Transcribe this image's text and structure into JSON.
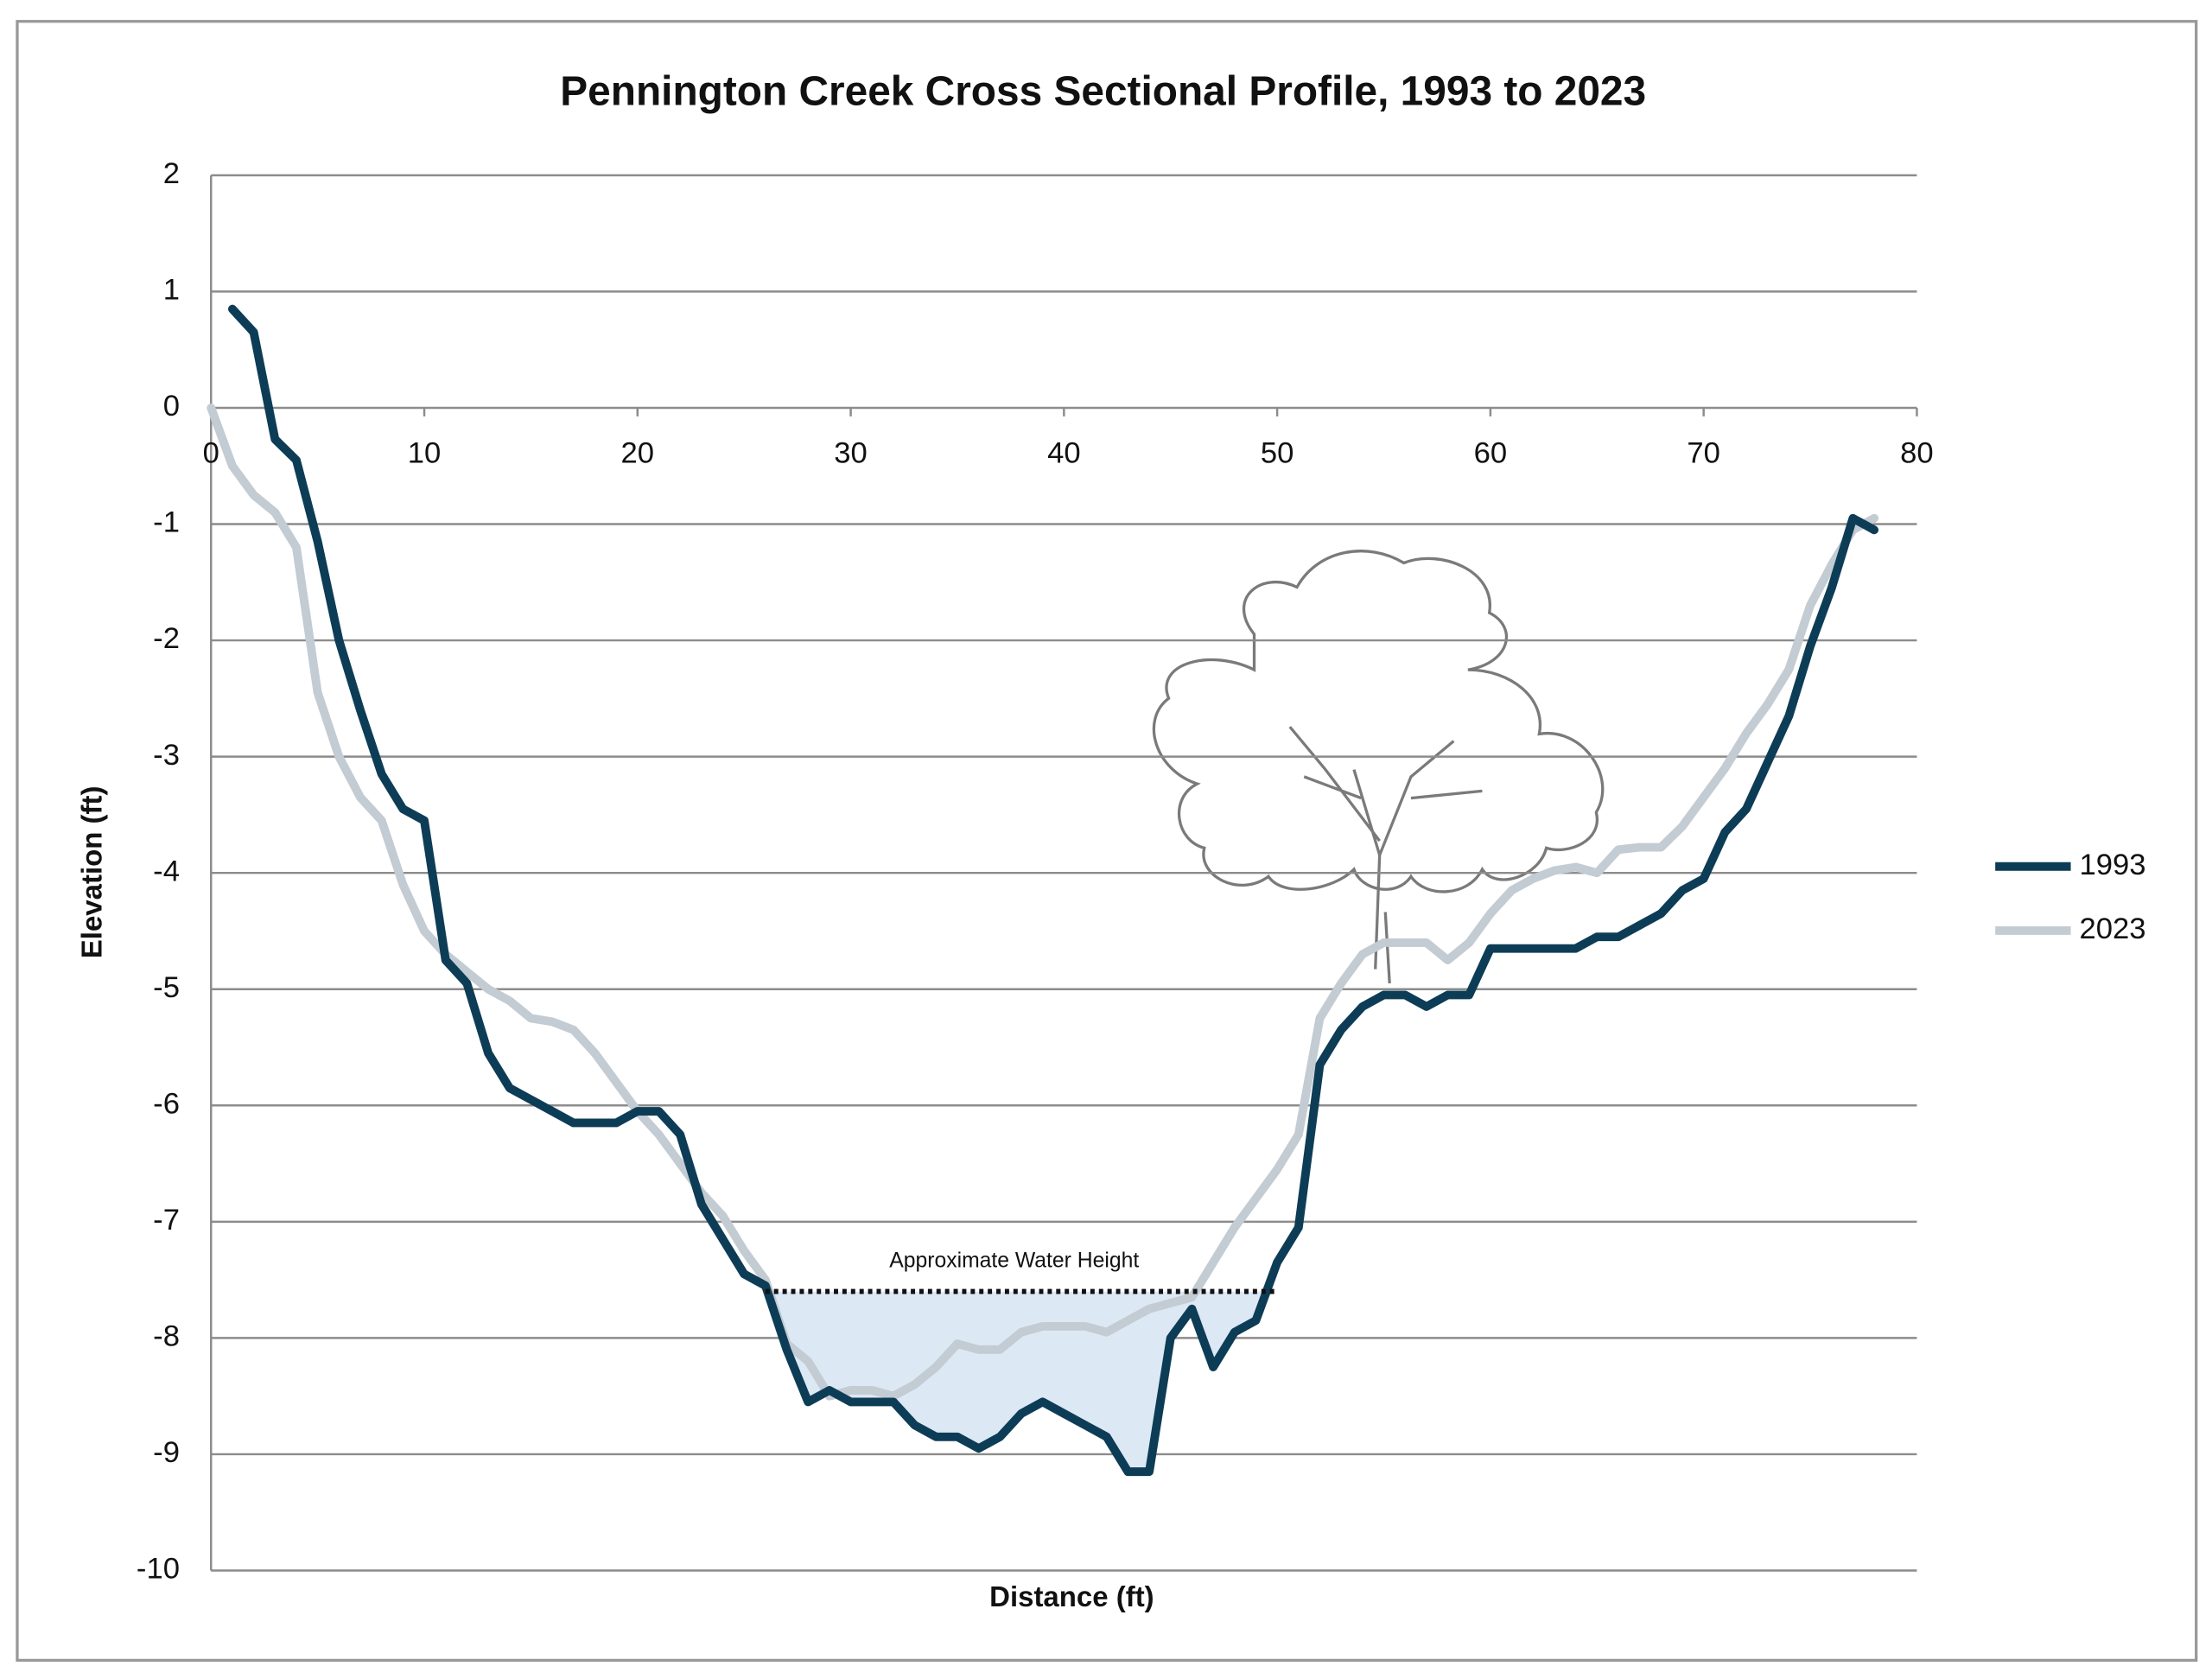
{
  "chart_data": {
    "type": "line",
    "title": "Pennington Creek Cross Sectional Profile, 1993 to 2023",
    "x_label": "Distance (ft)",
    "y_label": "Elevation (ft)",
    "xlim": [
      0,
      80
    ],
    "ylim": [
      -10,
      2
    ],
    "xticks": [
      0,
      10,
      20,
      30,
      40,
      50,
      60,
      70,
      80
    ],
    "yticks": [
      -10,
      -9,
      -8,
      -7,
      -6,
      -5,
      -4,
      -3,
      -2,
      -1,
      0,
      1,
      2
    ],
    "grid": true,
    "legend": "right",
    "series": [
      {
        "name": "1993",
        "color": "#0d3d56",
        "x": [
          1,
          2,
          3,
          4,
          5,
          6,
          7,
          8,
          9,
          10,
          11,
          12,
          13,
          14,
          15,
          16,
          17,
          18,
          19,
          20,
          21,
          22,
          23,
          24,
          25,
          26,
          27,
          28,
          29,
          30,
          31,
          32,
          33,
          34,
          35,
          36,
          37,
          38,
          39,
          40,
          41,
          42,
          43,
          44,
          45,
          46,
          47,
          48,
          49,
          50,
          51,
          52,
          53,
          54,
          55,
          56,
          57,
          58,
          59,
          60,
          61,
          62,
          63,
          64,
          65,
          66,
          67,
          68,
          69,
          70,
          71,
          72,
          73,
          74,
          75,
          76,
          77,
          78
        ],
        "values": [
          0.85,
          0.65,
          -0.27,
          -0.45,
          -1.15,
          -2.0,
          -2.6,
          -3.15,
          -3.45,
          -3.55,
          -4.75,
          -4.95,
          -5.55,
          -5.85,
          -5.95,
          -6.05,
          -6.15,
          -6.15,
          -6.15,
          -6.05,
          -6.05,
          -6.25,
          -6.85,
          -7.15,
          -7.45,
          -7.55,
          -8.1,
          -8.55,
          -8.45,
          -8.55,
          -8.55,
          -8.55,
          -8.75,
          -8.85,
          -8.85,
          -8.95,
          -8.85,
          -8.65,
          -8.55,
          -8.65,
          -8.75,
          -8.85,
          -9.15,
          -9.15,
          -8.0,
          -7.75,
          -8.25,
          -7.95,
          -7.85,
          -7.35,
          -7.05,
          -5.65,
          -5.35,
          -5.15,
          -5.05,
          -5.05,
          -5.15,
          -5.05,
          -5.05,
          -4.65,
          -4.65,
          -4.65,
          -4.65,
          -4.65,
          -4.55,
          -4.55,
          -4.45,
          -4.35,
          -4.15,
          -4.05,
          -3.65,
          -3.45,
          -3.05,
          -2.65,
          -2.05,
          -1.55,
          -0.95,
          -1.05
        ]
      },
      {
        "name": "2023",
        "color": "#c3cbd3",
        "x": [
          0,
          1,
          2,
          3,
          4,
          5,
          6,
          7,
          8,
          9,
          10,
          11,
          12,
          13,
          14,
          15,
          16,
          17,
          18,
          19,
          20,
          21,
          22,
          23,
          24,
          25,
          26,
          27,
          28,
          29,
          30,
          31,
          32,
          33,
          34,
          35,
          36,
          37,
          38,
          39,
          40,
          41,
          42,
          43,
          44,
          45,
          46,
          47,
          48,
          49,
          50,
          51,
          52,
          53,
          54,
          55,
          56,
          57,
          58,
          59,
          60,
          61,
          62,
          63,
          64,
          65,
          66,
          67,
          68,
          69,
          70,
          71,
          72,
          73,
          74,
          75,
          76,
          77,
          78
        ],
        "values": [
          0,
          -0.5,
          -0.75,
          -0.9,
          -1.2,
          -2.45,
          -3.0,
          -3.35,
          -3.55,
          -4.1,
          -4.5,
          -4.7,
          -4.85,
          -5.0,
          -5.1,
          -5.25,
          -5.28,
          -5.35,
          -5.55,
          -5.8,
          -6.05,
          -6.25,
          -6.5,
          -6.75,
          -6.95,
          -7.25,
          -7.5,
          -8.05,
          -8.2,
          -8.5,
          -8.45,
          -8.45,
          -8.5,
          -8.4,
          -8.25,
          -8.05,
          -8.1,
          -8.1,
          -7.95,
          -7.9,
          -7.9,
          -7.9,
          -7.95,
          -7.85,
          -7.75,
          -7.7,
          -7.65,
          -7.35,
          -7.05,
          -6.8,
          -6.55,
          -6.25,
          -5.25,
          -4.95,
          -4.7,
          -4.6,
          -4.6,
          -4.6,
          -4.75,
          -4.6,
          -4.35,
          -4.15,
          -4.05,
          -3.98,
          -3.95,
          -4.0,
          -3.8,
          -3.78,
          -3.78,
          -3.6,
          -3.35,
          -3.1,
          -2.8,
          -2.55,
          -2.25,
          -1.7,
          -1.35,
          -1.05,
          -0.95
        ]
      }
    ],
    "annotation": {
      "text": "Approximate Water Height",
      "y": -7.6,
      "x": [
        26,
        50
      ],
      "fill": "#dde8f5"
    }
  }
}
